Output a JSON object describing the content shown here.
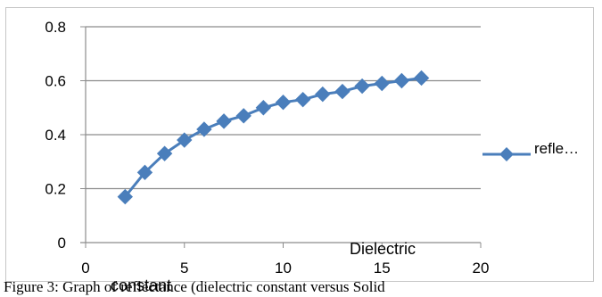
{
  "chart_data": {
    "type": "line",
    "title": "",
    "xlabel": "Dielectric constant",
    "xlabel_line1": "Dielectric",
    "xlabel_line2": "constant",
    "ylabel": "",
    "xlim": [
      0,
      20
    ],
    "ylim": [
      0,
      0.8
    ],
    "x_ticks": [
      "0",
      "5",
      "10",
      "15",
      "20"
    ],
    "y_ticks": [
      "0",
      "0.2",
      "0.4",
      "0.6",
      "0.8"
    ],
    "grid": "horizontal",
    "legend_position": "right",
    "series": [
      {
        "name": "refle…",
        "color": "#4a7ebb",
        "marker": "diamond",
        "x": [
          2,
          3,
          4,
          5,
          6,
          7,
          8,
          9,
          10,
          11,
          12,
          13,
          14,
          15,
          16,
          17
        ],
        "y": [
          0.17,
          0.26,
          0.33,
          0.38,
          0.42,
          0.45,
          0.47,
          0.5,
          0.52,
          0.53,
          0.55,
          0.56,
          0.58,
          0.59,
          0.6,
          0.61
        ]
      }
    ]
  },
  "caption": "Figure 3: Graph of reflectance (dielectric constant versus Solid"
}
